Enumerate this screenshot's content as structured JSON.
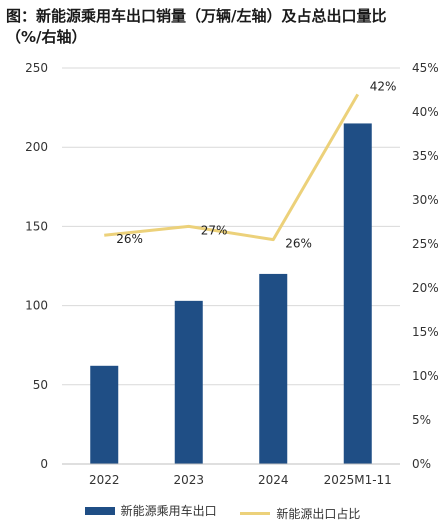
{
  "title_line1": "图：新能源乘用车出口销量（万辆/左轴）及占总出口量比",
  "title_line2": "（%/右轴）",
  "colors": {
    "bar": "#1F4E85",
    "line": "#ECD17A",
    "grid": "#D9D9D9"
  },
  "chart_data": {
    "type": "bar",
    "categories": [
      "2022",
      "2023",
      "2024",
      "2025M1-11"
    ],
    "series": [
      {
        "name": "新能源乘用车出口",
        "type": "bar",
        "axis": "left",
        "values": [
          62,
          103,
          120,
          215
        ]
      },
      {
        "name": "新能源出口占比",
        "type": "line",
        "axis": "right",
        "values": [
          26,
          27,
          25.5,
          42
        ],
        "labels": [
          "26%",
          "27%",
          "26%",
          "42%"
        ]
      }
    ],
    "y_left": {
      "ticks": [
        "0",
        "50",
        "100",
        "150",
        "200",
        "250"
      ],
      "range": [
        0,
        250
      ]
    },
    "y_right": {
      "ticks": [
        "0%",
        "5%",
        "10%",
        "15%",
        "20%",
        "25%",
        "30%",
        "35%",
        "40%",
        "45%"
      ],
      "range": [
        0,
        45
      ]
    },
    "grid": true,
    "legend_position": "bottom"
  }
}
